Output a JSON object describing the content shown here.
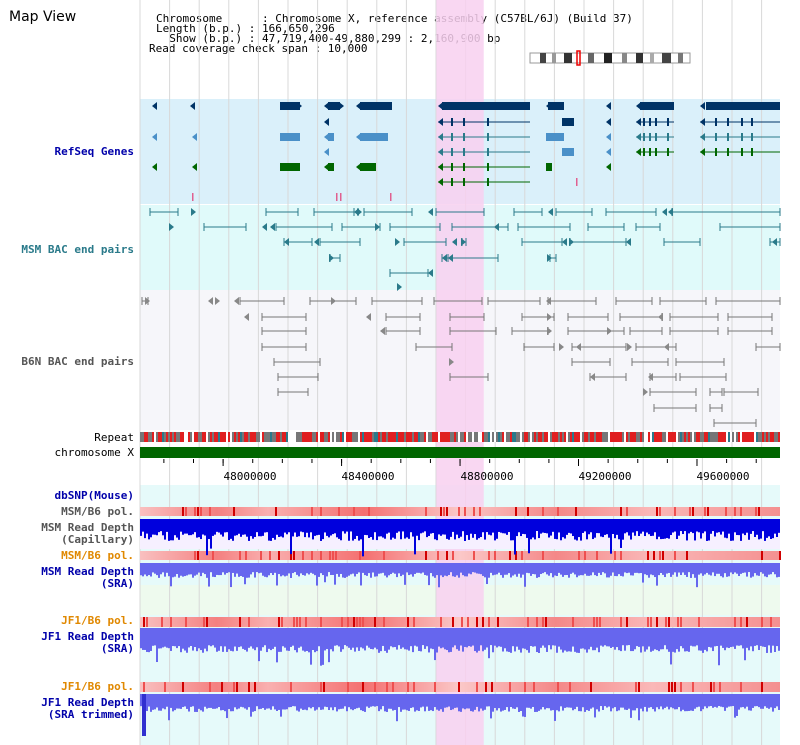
{
  "page": {
    "title": "Map View"
  },
  "info": {
    "chromosome_line": "Chromosome      : Chromosome X, reference assembly (C57BL/6J) (Build 37)",
    "length_line": "Length (b.p.) : 166,650,296",
    "show_line": "  Show (b.p.) : 47,719,400-49,880,299 : 2,160,900 bp",
    "coverage_line": "Read coverage check span : 10,000"
  },
  "tracks": {
    "refseq": "RefSeq Genes",
    "msm_bac": "MSM BAC end pairs",
    "b6n_bac": "B6N BAC end pairs",
    "repeat": "Repeat",
    "chromosome": "chromosome X",
    "dbsnp": "dbSNP(Mouse)",
    "msm_b6_pol_1": "MSM/B6 pol.",
    "msm_read_depth_cap_1": "MSM Read Depth",
    "msm_read_depth_cap_2": "(Capillary)",
    "msm_b6_pol_2": "MSM/B6 pol.",
    "msm_read_depth_sra_1": "MSM Read Depth",
    "msm_read_depth_sra_2": "(SRA)",
    "jf1_b6_pol_1": "JF1/B6 pol.",
    "jf1_read_depth_sra_1": "JF1 Read Depth",
    "jf1_read_depth_sra_2": "(SRA)",
    "jf1_b6_pol_2": "JF1/B6 pol.",
    "jf1_read_depth_trim_1": "JF1 Read Depth",
    "jf1_read_depth_trim_2": "(SRA trimmed)"
  },
  "axis": {
    "start_bp": 47719400,
    "end_bp": 49880299,
    "ticks": [
      "48000000",
      "48400000",
      "48800000",
      "49200000",
      "49600000"
    ],
    "tick_values": [
      48000000,
      48400000,
      48800000,
      49200000,
      49600000
    ]
  },
  "highlight": {
    "start_bp": 48720000,
    "end_bp": 48880000
  },
  "colors": {
    "label_blue": "#0000aa",
    "label_orange": "#e08800",
    "gene_navy": "#003366",
    "gene_lightblue": "#4a90c8",
    "gene_green": "#006600",
    "bac_teal": "#2a7a8a",
    "bac_gray": "#777777",
    "highlight_pink": "#f8d0f0",
    "chromosome_green": "#006600",
    "depth_blue": "#0000dd",
    "depth_light": "#6666ee"
  }
}
